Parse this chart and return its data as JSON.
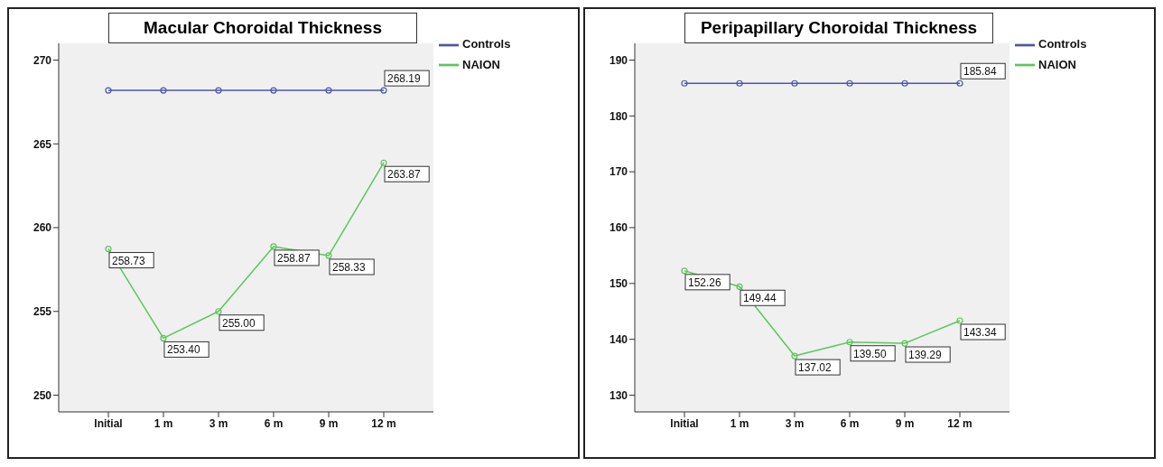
{
  "chart_data": [
    {
      "type": "line",
      "title": "Macular Choroidal Thickness",
      "categories": [
        "Initial",
        "1 m",
        "3 m",
        "6 m",
        "9 m",
        "12 m"
      ],
      "series": [
        {
          "name": "Controls",
          "color": "#4f56a8",
          "values": [
            268.19,
            268.19,
            268.19,
            268.19,
            268.19,
            268.19
          ],
          "value_labels": [
            null,
            null,
            null,
            null,
            null,
            "268.19"
          ]
        },
        {
          "name": "NAION",
          "color": "#5cc65c",
          "values": [
            258.73,
            253.4,
            255.0,
            258.87,
            258.33,
            263.87
          ],
          "value_labels": [
            "258.73",
            "253.40",
            "255.00",
            "258.87",
            "258.33",
            "263.87"
          ]
        }
      ],
      "ylim": [
        249,
        271
      ],
      "yticks": [
        250,
        255,
        260,
        265,
        270
      ],
      "legend": "top right",
      "marker": "circle",
      "line_style": "solid"
    },
    {
      "type": "line",
      "title": "Peripapillary Choroidal Thickness",
      "categories": [
        "Initial",
        "1 m",
        "3 m",
        "6 m",
        "9 m",
        "12 m"
      ],
      "series": [
        {
          "name": "Controls",
          "color": "#4f56a8",
          "values": [
            185.84,
            185.84,
            185.84,
            185.84,
            185.84,
            185.84
          ],
          "value_labels": [
            null,
            null,
            null,
            null,
            null,
            "185.84"
          ]
        },
        {
          "name": "NAION",
          "color": "#5cc65c",
          "values": [
            152.26,
            149.44,
            137.02,
            139.5,
            139.29,
            143.34
          ],
          "value_labels": [
            "152.26",
            "149.44",
            "137.02",
            "139.50",
            "139.29",
            "143.34"
          ]
        }
      ],
      "ylim": [
        127,
        193
      ],
      "yticks": [
        130,
        140,
        150,
        160,
        170,
        180,
        190
      ],
      "legend": "top right",
      "marker": "circle",
      "line_style": "solid"
    }
  ]
}
